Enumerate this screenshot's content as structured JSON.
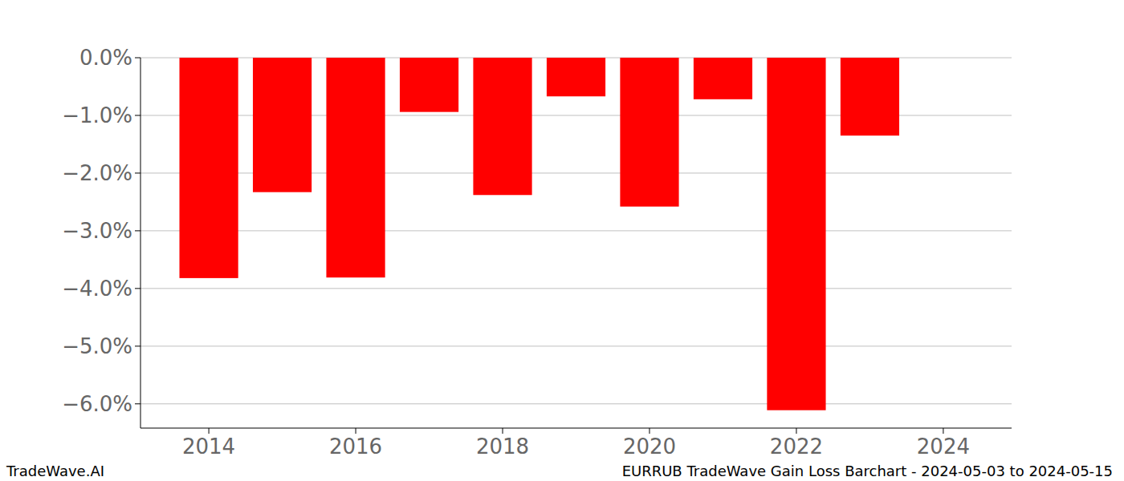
{
  "chart_data": {
    "type": "bar",
    "title": "EURRUB TradeWave Gain Loss Barchart - 2024-05-03 to 2024-05-15",
    "annotations": [
      "TradeWave.AI"
    ],
    "x": [
      2014,
      2015,
      2016,
      2017,
      2018,
      2019,
      2020,
      2021,
      2022,
      2023
    ],
    "values": [
      -3.82,
      -2.33,
      -3.81,
      -0.94,
      -2.38,
      -0.67,
      -2.58,
      -0.72,
      -6.11,
      -1.35
    ],
    "color": "#ff0000",
    "xlim": [
      2013.07,
      2024.93
    ],
    "xticks": [
      2014,
      2016,
      2018,
      2020,
      2022,
      2024
    ],
    "ylim": [
      -6.42,
      0
    ],
    "yticks": [
      {
        "value": 0,
        "label": "0.0%"
      },
      {
        "value": -1,
        "label": "−1.0%"
      },
      {
        "value": -2,
        "label": "−2.0%"
      },
      {
        "value": -3,
        "label": "−3.0%"
      },
      {
        "value": -4,
        "label": "−4.0%"
      },
      {
        "value": -5,
        "label": "−5.0%"
      },
      {
        "value": -6,
        "label": "−6.0%"
      }
    ],
    "grid": true
  }
}
